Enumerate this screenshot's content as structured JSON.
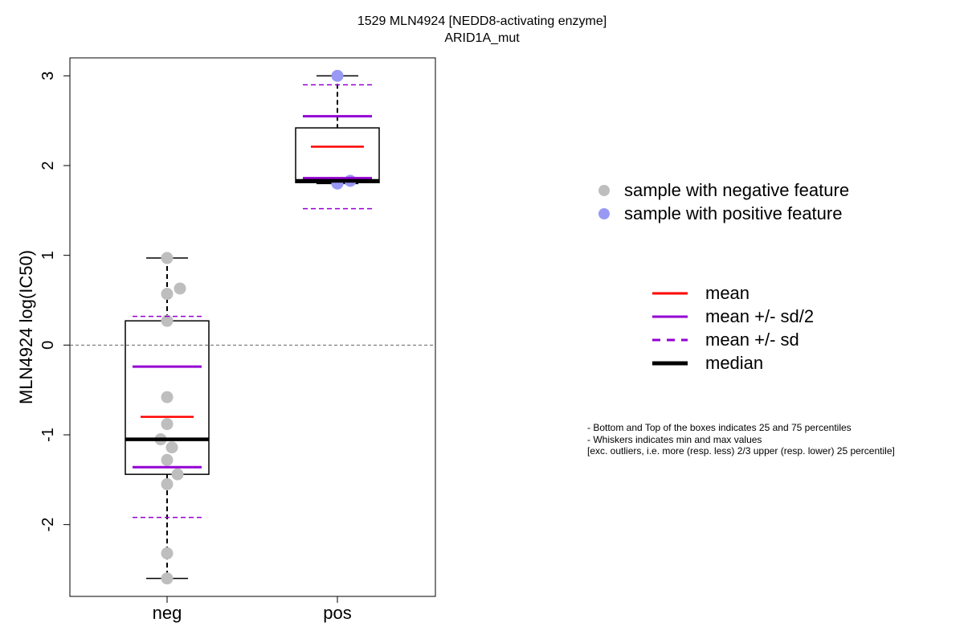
{
  "title_line1": "1529 MLN4924 [NEDD8-activating enzyme]",
  "title_line2": "ARID1A_mut",
  "legend_points": [
    {
      "label": "sample with negative feature",
      "color": "#bebebe"
    },
    {
      "label": "sample with positive feature",
      "color": "#9999f5"
    }
  ],
  "legend_lines": [
    {
      "label": "mean",
      "color": "#ff0000",
      "style": "solid"
    },
    {
      "label": "mean +/- sd/2",
      "color": "#9400d3",
      "style": "solid"
    },
    {
      "label": "mean +/- sd",
      "color": "#9400d3",
      "style": "dashed"
    },
    {
      "label": "median",
      "color": "#000000",
      "style": "thick"
    }
  ],
  "notes": [
    "- Bottom and Top of the boxes indicates 25 and 75 percentiles",
    "- Whiskers indicates min and max values",
    "[exc. outliers, i.e. more (resp. less) 2/3 upper (resp. lower) 25 percentile]"
  ],
  "chart_data": {
    "type": "boxplot",
    "ylabel": "MLN4924 log(IC50)",
    "ylim": [
      -2.8,
      3.2
    ],
    "yticks": [
      -2,
      -1,
      0,
      1,
      2,
      3
    ],
    "reference_line": 0,
    "categories": [
      "neg",
      "pos"
    ],
    "groups": [
      {
        "name": "neg",
        "point_color": "#bebebe",
        "points": [
          0.97,
          0.63,
          0.57,
          0.27,
          -0.58,
          -0.88,
          -1.05,
          -1.14,
          -1.28,
          -1.44,
          -1.55,
          -2.32,
          -2.6
        ],
        "q1": -1.44,
        "median": -1.05,
        "q3": 0.27,
        "whisker_low": -2.6,
        "whisker_high": 0.97,
        "mean": -0.8,
        "sd_half_low": -1.36,
        "sd_half_high": -0.24,
        "sd_low": -1.92,
        "sd_high": 0.32
      },
      {
        "name": "pos",
        "point_color": "#9999f5",
        "points": [
          3.0,
          1.83,
          1.8
        ],
        "q1": 1.81,
        "median": 1.83,
        "q3": 2.42,
        "whisker_low": 1.8,
        "whisker_high": 3.0,
        "mean": 2.21,
        "sd_half_low": 1.86,
        "sd_half_high": 2.55,
        "sd_low": 1.52,
        "sd_high": 2.9
      }
    ]
  }
}
